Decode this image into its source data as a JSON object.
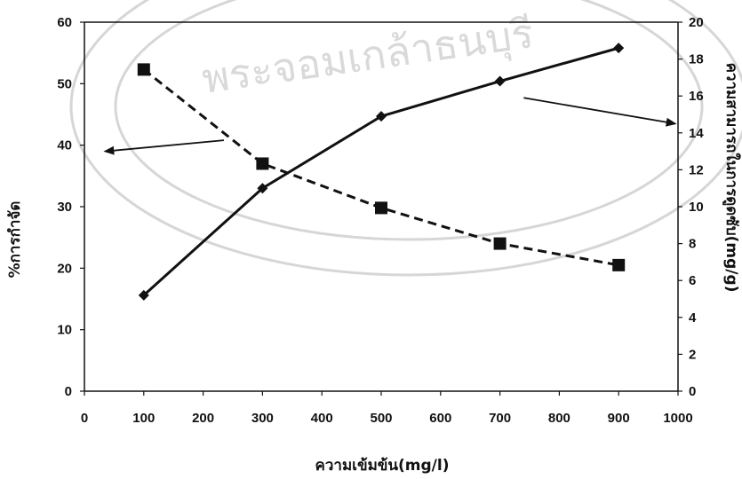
{
  "chart_data": {
    "type": "line",
    "title": "",
    "xlabel": "ความเข้มข้น(mg/l)",
    "ylabel": "%การกำจัด",
    "y2label": "ความสามารถในการดูดซับ(mg/g)",
    "x": [
      100,
      300,
      500,
      700,
      900
    ],
    "xlim": [
      0,
      1000
    ],
    "xticks": [
      "0",
      "100",
      "200",
      "300",
      "400",
      "500",
      "600",
      "700",
      "800",
      "900",
      "1000"
    ],
    "ylim": [
      0,
      60
    ],
    "yticks": [
      "0",
      "10",
      "20",
      "30",
      "40",
      "50",
      "60"
    ],
    "y2lim": [
      0,
      20
    ],
    "y2ticks": [
      "0",
      "2",
      "4",
      "6",
      "8",
      "10",
      "12",
      "14",
      "16",
      "18",
      "20"
    ],
    "grid": false,
    "legend": "none",
    "series": [
      {
        "axis": "left",
        "style": "dashed",
        "marker": "square",
        "color": "#111111",
        "values": [
          52.3,
          37.0,
          29.8,
          24.0,
          20.5
        ]
      },
      {
        "axis": "right",
        "style": "solid",
        "marker": "diamond",
        "color": "#111111",
        "values": [
          5.2,
          11.0,
          14.9,
          16.8,
          18.6
        ]
      }
    ],
    "annotations": [
      {
        "type": "arrow",
        "points_to": "left-axis"
      },
      {
        "type": "arrow",
        "points_to": "right-axis"
      }
    ],
    "watermark": "พระจอมเกล้าธนบุรี"
  }
}
